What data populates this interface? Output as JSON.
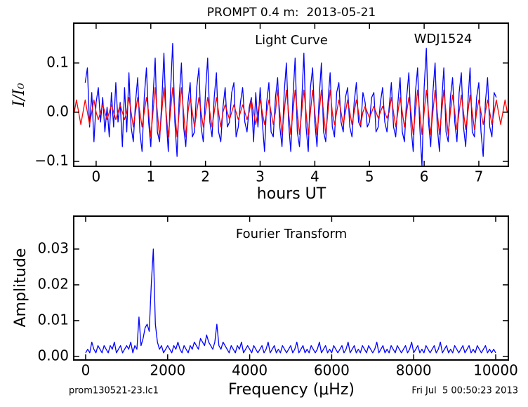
{
  "chart_data": [
    {
      "type": "line",
      "title": "PROMPT 0.4 m:  2013-05-21",
      "annotations": [
        "Light Curve",
        "WDJ1524"
      ],
      "x_label": "hours UT",
      "y_label": "I/I₀",
      "xlim": [
        -0.41,
        7.54
      ],
      "ylim": [
        -0.11,
        0.181
      ],
      "xticks": [
        0,
        1,
        2,
        3,
        4,
        5,
        6,
        7
      ],
      "yticks": [
        {
          "value": -0.1,
          "label": "−0.1"
        },
        {
          "value": 0,
          "label": "0.0"
        },
        0.1
      ],
      "x": [
        -0.4,
        -0.36,
        -0.32,
        -0.28,
        -0.24,
        -0.2,
        -0.16,
        -0.12,
        -0.08,
        -0.04,
        0,
        0.04,
        0.08,
        0.12,
        0.16,
        0.2,
        0.24,
        0.28,
        0.32,
        0.36,
        0.4,
        0.44,
        0.48,
        0.52,
        0.56,
        0.6,
        0.64,
        0.68,
        0.72,
        0.76,
        0.8,
        0.84,
        0.88,
        0.92,
        0.96,
        1,
        1.04,
        1.08,
        1.12,
        1.16,
        1.2,
        1.24,
        1.28,
        1.32,
        1.36,
        1.4,
        1.44,
        1.48,
        1.52,
        1.56,
        1.6,
        1.64,
        1.68,
        1.72,
        1.76,
        1.8,
        1.84,
        1.88,
        1.92,
        1.96,
        2,
        2.04,
        2.08,
        2.12,
        2.16,
        2.2,
        2.24,
        2.28,
        2.32,
        2.36,
        2.4,
        2.44,
        2.48,
        2.52,
        2.56,
        2.6,
        2.64,
        2.68,
        2.72,
        2.76,
        2.8,
        2.84,
        2.88,
        2.92,
        2.96,
        3,
        3.04,
        3.08,
        3.12,
        3.16,
        3.2,
        3.24,
        3.28,
        3.32,
        3.36,
        3.4,
        3.44,
        3.48,
        3.52,
        3.56,
        3.6,
        3.64,
        3.68,
        3.72,
        3.76,
        3.8,
        3.84,
        3.88,
        3.92,
        3.96,
        4,
        4.04,
        4.08,
        4.12,
        4.16,
        4.2,
        4.24,
        4.28,
        4.32,
        4.36,
        4.4,
        4.44,
        4.48,
        4.52,
        4.56,
        4.6,
        4.64,
        4.68,
        4.72,
        4.76,
        4.8,
        4.84,
        4.88,
        4.92,
        4.96,
        5,
        5.04,
        5.08,
        5.12,
        5.16,
        5.2,
        5.24,
        5.28,
        5.32,
        5.36,
        5.4,
        5.44,
        5.48,
        5.52,
        5.56,
        5.6,
        5.64,
        5.68,
        5.72,
        5.76,
        5.8,
        5.84,
        5.88,
        5.92,
        5.96,
        6,
        6.04,
        6.08,
        6.12,
        6.16,
        6.2,
        6.24,
        6.28,
        6.32,
        6.36,
        6.4,
        6.44,
        6.48,
        6.52,
        6.56,
        6.6,
        6.64,
        6.68,
        6.72,
        6.76,
        6.8,
        6.84,
        6.88,
        6.92,
        6.96,
        7,
        7.04,
        7.08,
        7.12,
        7.16,
        7.2,
        7.24,
        7.28,
        7.32,
        7.36,
        7.4,
        7.44,
        7.48,
        7.52
      ],
      "series": [
        {
          "color": "#0000ff",
          "values": [
            null,
            null,
            null,
            null,
            null,
            0.06,
            0.09,
            -0.03,
            0.04,
            -0.06,
            0.02,
            0.05,
            -0.02,
            0.03,
            -0.04,
            0.01,
            -0.05,
            0.04,
            -0.03,
            0.06,
            -0.02,
            0.02,
            -0.07,
            0.05,
            -0.04,
            0.08,
            -0.03,
            -0.06,
            0.02,
            0.07,
            -0.04,
            -0.08,
            0.03,
            0.09,
            -0.02,
            -0.07,
            0.03,
            0.11,
            -0.04,
            -0.06,
            0.02,
            0.12,
            -0.01,
            -0.08,
            0.04,
            0.14,
            -0.02,
            -0.09,
            0.03,
            0.1,
            -0.03,
            -0.07,
            0.02,
            0.06,
            -0.05,
            -0.04,
            0.05,
            0.09,
            -0.03,
            -0.06,
            0.04,
            0.11,
            -0.02,
            -0.05,
            0.03,
            0.08,
            -0.04,
            -0.06,
            0.01,
            0.05,
            -0.03,
            -0.02,
            0.04,
            0.06,
            -0.05,
            -0.03,
            0.02,
            0.05,
            -0.02,
            -0.04,
            0.01,
            0.03,
            -0.06,
            0.04,
            -0.03,
            0.05,
            -0.02,
            -0.08,
            0.02,
            0.06,
            -0.04,
            -0.05,
            0.03,
            0.07,
            -0.03,
            -0.07,
            0.04,
            0.1,
            -0.02,
            -0.08,
            0.03,
            0.11,
            -0.04,
            -0.07,
            0.02,
            0.12,
            -0.03,
            -0.08,
            0.05,
            0.09,
            -0.02,
            -0.07,
            0.03,
            0.1,
            -0.04,
            -0.06,
            0.02,
            0.08,
            -0.03,
            -0.05,
            0.04,
            0.06,
            -0.02,
            -0.04,
            0.03,
            0.05,
            -0.03,
            -0.05,
            0.02,
            0.06,
            -0.02,
            -0.03,
            0.04,
            0.02,
            -0.03,
            -0.02,
            0.03,
            0.04,
            -0.04,
            -0.03,
            0.02,
            0.05,
            -0.02,
            -0.04,
            0.01,
            0.06,
            -0.03,
            -0.05,
            0.02,
            0.07,
            -0.04,
            -0.06,
            0.03,
            0.08,
            -0.03,
            -0.08,
            0.04,
            0.09,
            -0.03,
            -0.11,
            0.05,
            0.13,
            -0.02,
            -0.07,
            0.04,
            0.1,
            -0.03,
            -0.08,
            0.02,
            0.09,
            -0.04,
            -0.06,
            0.03,
            0.07,
            -0.02,
            -0.06,
            0.04,
            0.08,
            -0.03,
            -0.07,
            0.02,
            0.09,
            -0.04,
            -0.05,
            0.03,
            0.06,
            -0.04,
            -0.09,
            0.02,
            0.07,
            -0.03,
            -0.05,
            0.04,
            0.03,
            null,
            null,
            null,
            null,
            null
          ]
        },
        {
          "color": "#ff0000",
          "values": [
            0,
            0.025,
            0,
            -0.025,
            0,
            0.025,
            0,
            -0.025,
            0,
            0.025,
            0,
            -0.015,
            0,
            0.015,
            0,
            -0.015,
            0,
            0.015,
            0,
            -0.015,
            0,
            0.015,
            0,
            -0.015,
            0,
            0.03,
            0,
            -0.03,
            0,
            0.03,
            0,
            -0.03,
            0,
            0.03,
            0,
            -0.05,
            0,
            0.05,
            0,
            -0.05,
            0,
            0.05,
            0,
            -0.05,
            0,
            0.05,
            0,
            -0.05,
            0,
            0.05,
            0,
            -0.05,
            0,
            0.03,
            0,
            -0.03,
            0,
            0.03,
            0,
            -0.03,
            0,
            0.03,
            0,
            -0.03,
            0,
            0.03,
            0,
            -0.03,
            0,
            0.015,
            0,
            -0.015,
            0,
            0.015,
            0,
            -0.015,
            0,
            0.015,
            0,
            -0.015,
            0,
            0.025,
            0,
            -0.025,
            0,
            0.025,
            0,
            -0.025,
            0,
            0.025,
            0,
            -0.025,
            0,
            0.045,
            0,
            -0.045,
            0,
            0.045,
            0,
            -0.045,
            0,
            0.045,
            0,
            -0.045,
            0,
            0.045,
            0,
            -0.045,
            0,
            0.045,
            0,
            -0.045,
            0,
            0.045,
            0,
            -0.045,
            0,
            0.045,
            0,
            -0.025,
            0,
            0.025,
            0,
            -0.025,
            0,
            0.025,
            0,
            -0.025,
            0,
            0.025,
            0,
            -0.025,
            0,
            0.012,
            0,
            -0.012,
            0,
            0.012,
            0,
            -0.012,
            0,
            0.012,
            0,
            -0.012,
            0,
            0.03,
            0,
            -0.03,
            0,
            0.03,
            0,
            -0.03,
            0,
            0.03,
            0,
            -0.045,
            0,
            0.045,
            0,
            -0.045,
            0,
            0.045,
            0,
            -0.045,
            0,
            0.045,
            0,
            -0.045,
            0,
            0.045,
            0,
            -0.045,
            0,
            0.035,
            0,
            -0.035,
            0,
            0.035,
            0,
            -0.035,
            0,
            0.035,
            0,
            -0.035,
            0,
            0.025,
            0,
            -0.025,
            0,
            0.025,
            0,
            -0.025,
            0,
            0.025,
            0,
            -0.025,
            0,
            0.025,
            0
          ]
        }
      ]
    },
    {
      "type": "line",
      "annotations": [
        "Fourier Transform"
      ],
      "x_label": "Frequency (μHz)",
      "y_label": "Amplitude",
      "xlim": [
        -291,
        10308
      ],
      "ylim": [
        -0.001,
        0.0392
      ],
      "xticks": [
        0,
        2000,
        4000,
        6000,
        8000,
        10000
      ],
      "yticks": [
        {
          "value": 0,
          "label": "0.00"
        },
        {
          "value": 0.01,
          "label": "0.01"
        },
        {
          "value": 0.02,
          "label": "0.02"
        },
        {
          "value": 0.03,
          "label": "0.03"
        }
      ],
      "x": [
        0,
        50,
        100,
        150,
        200,
        250,
        300,
        350,
        400,
        450,
        500,
        550,
        600,
        650,
        700,
        750,
        800,
        850,
        900,
        950,
        1000,
        1050,
        1100,
        1150,
        1200,
        1250,
        1300,
        1350,
        1400,
        1450,
        1500,
        1550,
        1600,
        1650,
        1700,
        1750,
        1800,
        1850,
        1900,
        1950,
        2000,
        2050,
        2100,
        2150,
        2200,
        2250,
        2300,
        2350,
        2400,
        2450,
        2500,
        2550,
        2600,
        2650,
        2700,
        2750,
        2800,
        2850,
        2900,
        2950,
        3000,
        3050,
        3100,
        3150,
        3200,
        3250,
        3300,
        3350,
        3400,
        3450,
        3500,
        3550,
        3600,
        3650,
        3700,
        3750,
        3800,
        3850,
        3900,
        3950,
        4000,
        4050,
        4100,
        4150,
        4200,
        4250,
        4300,
        4350,
        4400,
        4450,
        4500,
        4550,
        4600,
        4650,
        4700,
        4750,
        4800,
        4850,
        4900,
        4950,
        5000,
        5050,
        5100,
        5150,
        5200,
        5250,
        5300,
        5350,
        5400,
        5450,
        5500,
        5550,
        5600,
        5650,
        5700,
        5750,
        5800,
        5850,
        5900,
        5950,
        6000,
        6050,
        6100,
        6150,
        6200,
        6250,
        6300,
        6350,
        6400,
        6450,
        6500,
        6550,
        6600,
        6650,
        6700,
        6750,
        6800,
        6850,
        6900,
        6950,
        7000,
        7050,
        7100,
        7150,
        7200,
        7250,
        7300,
        7350,
        7400,
        7450,
        7500,
        7550,
        7600,
        7650,
        7700,
        7750,
        7800,
        7850,
        7900,
        7950,
        8000,
        8050,
        8100,
        8150,
        8200,
        8250,
        8300,
        8350,
        8400,
        8450,
        8500,
        8550,
        8600,
        8650,
        8700,
        8750,
        8800,
        8850,
        8900,
        8950,
        9000,
        9050,
        9100,
        9150,
        9200,
        9250,
        9300,
        9350,
        9400,
        9450,
        9500,
        9550,
        9600,
        9650,
        9700,
        9750,
        9800,
        9850,
        9900,
        9950,
        10000
      ],
      "series": [
        {
          "color": "#0000ff",
          "values": [
            0.001,
            0.002,
            0.001,
            0.004,
            0.002,
            0.001,
            0.003,
            0.002,
            0.001,
            0.003,
            0.002,
            0.001,
            0.003,
            0.002,
            0.004,
            0.001,
            0.002,
            0.003,
            0.001,
            0.002,
            0.003,
            0.002,
            0.004,
            0.001,
            0.003,
            0.002,
            0.011,
            0.003,
            0.005,
            0.008,
            0.009,
            0.007,
            0.02,
            0.03,
            0.009,
            0.004,
            0.002,
            0.003,
            0.001,
            0.002,
            0.003,
            0.002,
            0.001,
            0.003,
            0.002,
            0.004,
            0.002,
            0.001,
            0.003,
            0.002,
            0.001,
            0.003,
            0.002,
            0.004,
            0.003,
            0.002,
            0.005,
            0.004,
            0.003,
            0.006,
            0.004,
            0.003,
            0.002,
            0.004,
            0.009,
            0.003,
            0.002,
            0.004,
            0.003,
            0.002,
            0.001,
            0.003,
            0.002,
            0.001,
            0.003,
            0.002,
            0.004,
            0.001,
            0.002,
            0.003,
            0.002,
            0.001,
            0.003,
            0.002,
            0.001,
            0.002,
            0.003,
            0.001,
            0.002,
            0.004,
            0.001,
            0.002,
            0.003,
            0.001,
            0.002,
            0.001,
            0.003,
            0.002,
            0.001,
            0.002,
            0.003,
            0.001,
            0.002,
            0.004,
            0.001,
            0.002,
            0.003,
            0.001,
            0.002,
            0.001,
            0.003,
            0.002,
            0.001,
            0.002,
            0.004,
            0.001,
            0.002,
            0.003,
            0.001,
            0.002,
            0.001,
            0.003,
            0.002,
            0.001,
            0.002,
            0.003,
            0.001,
            0.002,
            0.004,
            0.001,
            0.002,
            0.003,
            0.001,
            0.002,
            0.001,
            0.003,
            0.002,
            0.001,
            0.003,
            0.002,
            0.001,
            0.002,
            0.004,
            0.001,
            0.002,
            0.003,
            0.001,
            0.002,
            0.001,
            0.003,
            0.002,
            0.001,
            0.003,
            0.002,
            0.001,
            0.002,
            0.003,
            0.001,
            0.002,
            0.004,
            0.001,
            0.002,
            0.003,
            0.001,
            0.002,
            0.001,
            0.003,
            0.002,
            0.001,
            0.002,
            0.003,
            0.001,
            0.002,
            0.004,
            0.001,
            0.002,
            0.003,
            0.001,
            0.002,
            0.001,
            0.003,
            0.002,
            0.001,
            0.002,
            0.003,
            0.001,
            0.002,
            0.003,
            0.001,
            0.002,
            0.001,
            0.003,
            0.002,
            0.001,
            0.002,
            0.003,
            0.001,
            0.002,
            0.001,
            0.002,
            0.001
          ]
        }
      ]
    }
  ],
  "footer": {
    "left": "prom130521-23.lc1",
    "right": "Fri Jul  5 00:50:23 2013"
  }
}
